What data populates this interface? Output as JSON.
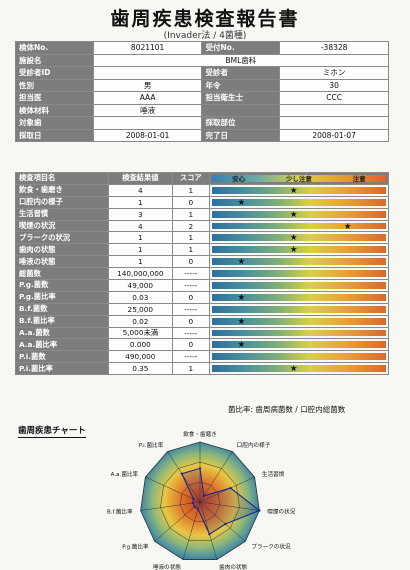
{
  "title": "歯周疾患検査報告書",
  "subtitle": "(Invader法 / 4菌種)",
  "info": {
    "rows": [
      [
        {
          "l": "検体No.",
          "v": "8021101"
        },
        {
          "l": "受付No.",
          "v": "-38328"
        }
      ],
      [
        {
          "l": "施設名",
          "v": "BML歯科"
        }
      ],
      [
        {
          "l": "受診者ID",
          "v": ""
        },
        {
          "l": "受診者",
          "v": "ミホン"
        }
      ],
      [
        {
          "l": "性別",
          "v": "男"
        },
        {
          "l": "年令",
          "v": "30"
        }
      ],
      [
        {
          "l": "担当医",
          "v": "AAA"
        },
        {
          "l": "担当衛生士",
          "v": "CCC"
        }
      ],
      [
        {
          "l": "検体材料",
          "v": "唾液"
        },
        {
          "l": "",
          "v": ""
        }
      ],
      [
        {
          "l": "対象歯",
          "v": ""
        },
        {
          "l": "採取部位",
          "v": ""
        }
      ],
      [
        {
          "l": "採取日",
          "v": "2008-01-01"
        },
        {
          "l": "完了日",
          "v": "2008-01-07"
        }
      ]
    ]
  },
  "results": {
    "headers": {
      "item": "検査項目名",
      "value": "検査結果値",
      "score": "スコア"
    },
    "scale_labels": [
      "安心",
      "少し注意",
      "注意"
    ],
    "rows": [
      {
        "item": "飲食・歯磨き",
        "value": "4",
        "score": "1",
        "star": 0.47
      },
      {
        "item": "口腔内の様子",
        "value": "1",
        "score": "0",
        "star": 0.17
      },
      {
        "item": "生活習慣",
        "value": "3",
        "score": "1",
        "star": 0.47
      },
      {
        "item": "喫煙の状況",
        "value": "4",
        "score": "2",
        "star": 0.78
      },
      {
        "item": "プラークの状況",
        "value": "1",
        "score": "1",
        "star": 0.47
      },
      {
        "item": "歯肉の状態",
        "value": "1",
        "score": "1",
        "star": 0.47
      },
      {
        "item": "唾液の状態",
        "value": "1",
        "score": "0",
        "star": 0.17
      },
      {
        "item": "総菌数",
        "value": "140,000,000",
        "score": "-----",
        "star": null
      },
      {
        "item": "P.g.菌数",
        "value": "49,000",
        "score": "-----",
        "star": null
      },
      {
        "item": "P.g.菌比率",
        "value": "0.03",
        "score": "0",
        "star": 0.17
      },
      {
        "item": "B.f.菌数",
        "value": "25,000",
        "score": "-----",
        "star": null
      },
      {
        "item": "B.f.菌比率",
        "value": "0.02",
        "score": "0",
        "star": 0.17
      },
      {
        "item": "A.a.菌数",
        "value": "5,000未満",
        "score": "-----",
        "star": null
      },
      {
        "item": "A.a.菌比率",
        "value": "0.000",
        "score": "0",
        "star": 0.17
      },
      {
        "item": "P.i.菌数",
        "value": "490,000",
        "score": "-----",
        "star": null
      },
      {
        "item": "P.i.菌比率",
        "value": "0.35",
        "score": "1",
        "star": 0.47
      }
    ]
  },
  "footnote": "菌比率: 歯周病菌数 / 口腔内総菌数",
  "chart_title": "歯周疾患チャート",
  "chart_data": {
    "type": "radar",
    "axes": [
      "飲食・歯磨き",
      "口腔内の様子",
      "生活習慣",
      "喫煙の状況",
      "プラークの状況",
      "歯肉の状態",
      "唾液の状態",
      "P.g.菌比率",
      "B.f.菌比率",
      "A.a.菌比率",
      "P.i.菌比率"
    ],
    "values": [
      1,
      0,
      1,
      2,
      1,
      1,
      0,
      0,
      0,
      0,
      1
    ],
    "range": [
      0,
      2
    ]
  }
}
